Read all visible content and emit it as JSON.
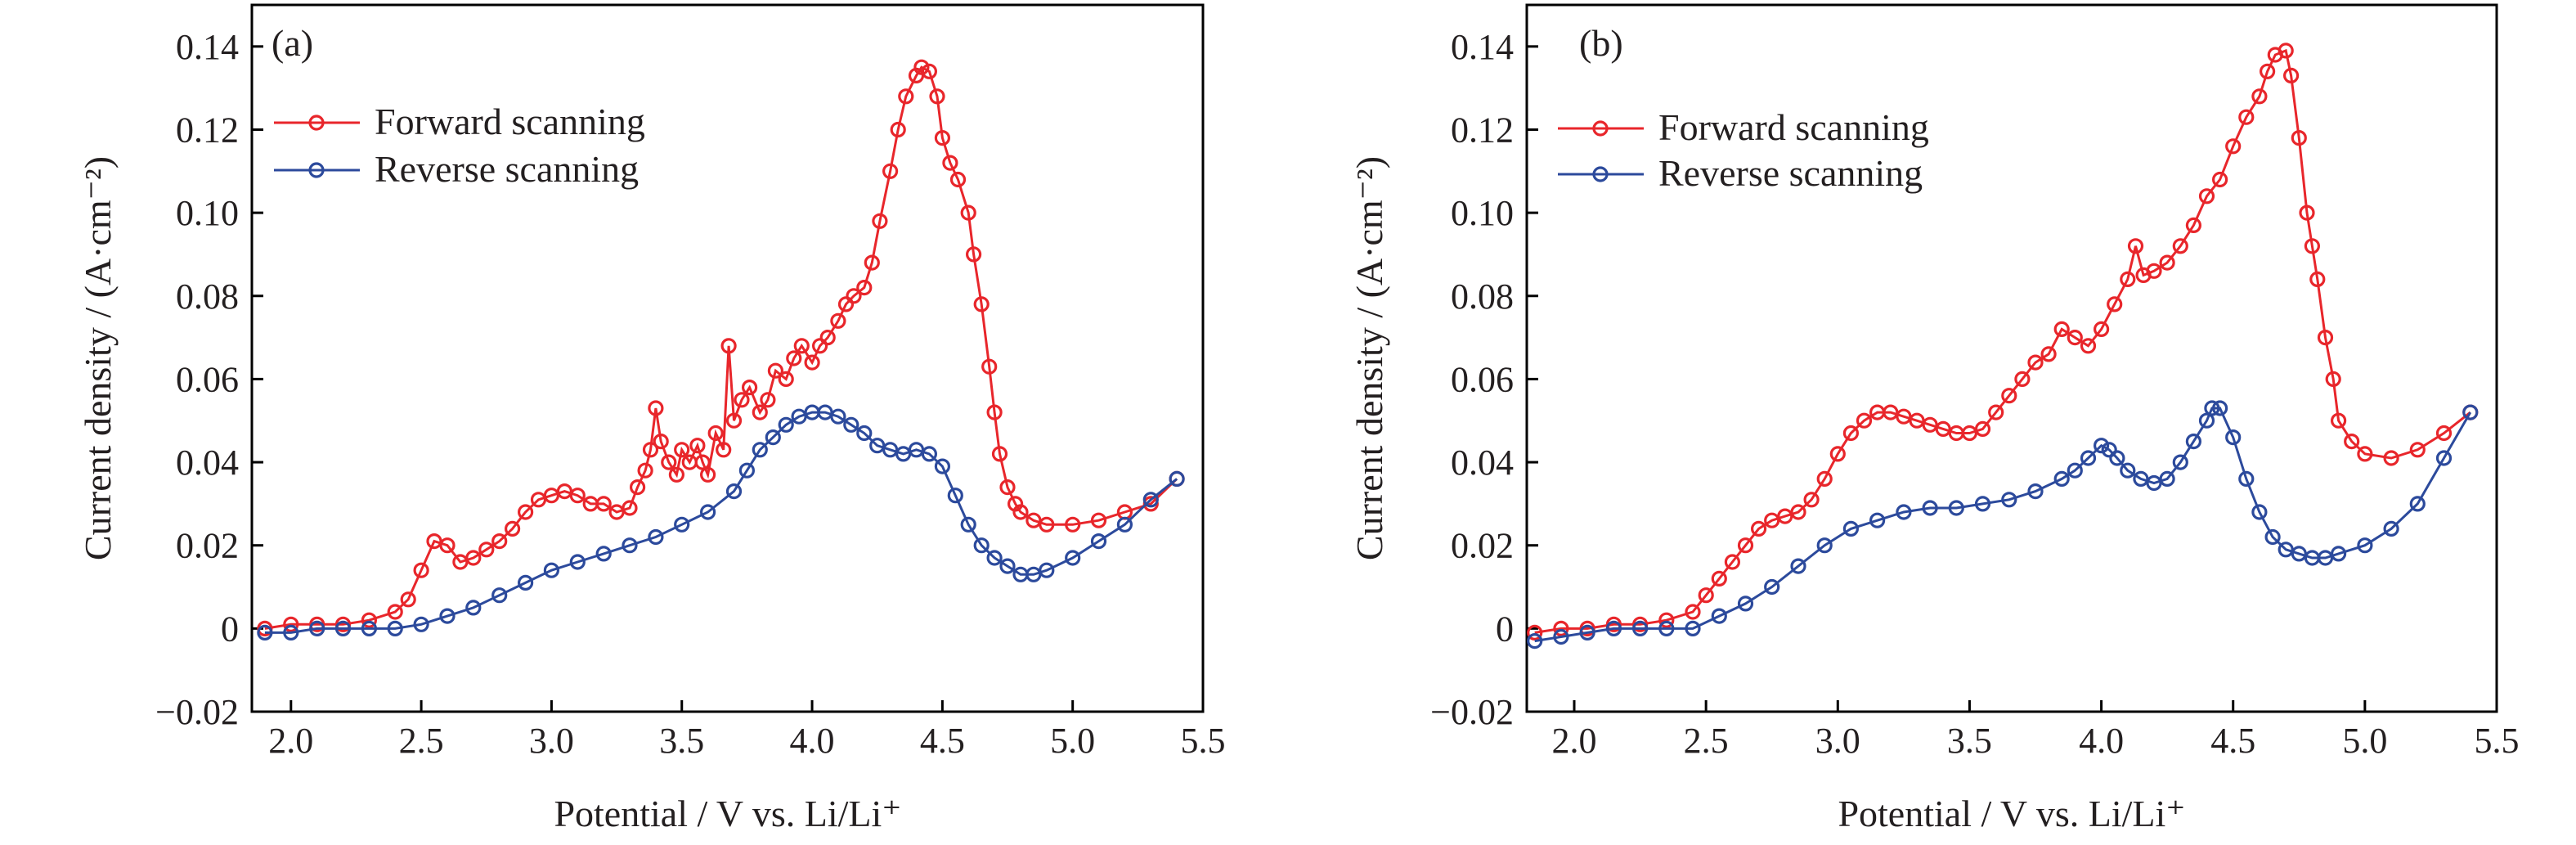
{
  "colors": {
    "forward": "#e8262b",
    "reverse": "#2c4a9c"
  },
  "shared": {
    "xlabel": "Potential / V vs. Li/Li⁺",
    "ylabel": "Current density / (A·cm⁻²)",
    "legend": [
      "Forward scanning",
      "Reverse scanning"
    ],
    "x_ticks": [
      "2.0",
      "2.5",
      "3.0",
      "3.5",
      "4.0",
      "4.5",
      "5.0",
      "5.5"
    ],
    "y_ticks": [
      "−0.02",
      "0",
      "0.02",
      "0.04",
      "0.06",
      "0.08",
      "0.10",
      "0.12",
      "0.14"
    ]
  },
  "chart_data": [
    {
      "type": "scatter",
      "panel_label": "(a)",
      "xlabel": "Potential / V vs. Li/Li⁺",
      "ylabel": "Current density / (A·cm⁻²)",
      "xlim": [
        1.85,
        5.5
      ],
      "ylim": [
        -0.02,
        0.15
      ],
      "x_tick_values": [
        2.0,
        2.5,
        3.0,
        3.5,
        4.0,
        4.5,
        5.0,
        5.5
      ],
      "y_tick_values": [
        -0.02,
        0,
        0.02,
        0.04,
        0.06,
        0.08,
        0.1,
        0.12,
        0.14
      ],
      "legend_position": "upper-left",
      "series": [
        {
          "name": "Forward scanning",
          "color": "#e8262b",
          "x": [
            1.9,
            2.0,
            2.1,
            2.2,
            2.3,
            2.4,
            2.45,
            2.5,
            2.55,
            2.6,
            2.65,
            2.7,
            2.75,
            2.8,
            2.85,
            2.9,
            2.95,
            3.0,
            3.05,
            3.1,
            3.15,
            3.2,
            3.25,
            3.3,
            3.33,
            3.36,
            3.38,
            3.4,
            3.42,
            3.45,
            3.48,
            3.5,
            3.53,
            3.56,
            3.58,
            3.6,
            3.63,
            3.66,
            3.68,
            3.7,
            3.73,
            3.76,
            3.8,
            3.83,
            3.86,
            3.9,
            3.93,
            3.96,
            4.0,
            4.03,
            4.06,
            4.1,
            4.13,
            4.16,
            4.2,
            4.23,
            4.26,
            4.3,
            4.33,
            4.36,
            4.4,
            4.42,
            4.45,
            4.48,
            4.5,
            4.53,
            4.56,
            4.6,
            4.62,
            4.65,
            4.68,
            4.7,
            4.72,
            4.75,
            4.78,
            4.8,
            4.85,
            4.9,
            5.0,
            5.1,
            5.2,
            5.3,
            5.4
          ],
          "y": [
            0.0,
            0.001,
            0.001,
            0.001,
            0.002,
            0.004,
            0.007,
            0.014,
            0.021,
            0.02,
            0.016,
            0.017,
            0.019,
            0.021,
            0.024,
            0.028,
            0.031,
            0.032,
            0.033,
            0.032,
            0.03,
            0.03,
            0.028,
            0.029,
            0.034,
            0.038,
            0.043,
            0.053,
            0.045,
            0.04,
            0.037,
            0.043,
            0.04,
            0.044,
            0.04,
            0.037,
            0.047,
            0.043,
            0.068,
            0.05,
            0.055,
            0.058,
            0.052,
            0.055,
            0.062,
            0.06,
            0.065,
            0.068,
            0.064,
            0.068,
            0.07,
            0.074,
            0.078,
            0.08,
            0.082,
            0.088,
            0.098,
            0.11,
            0.12,
            0.128,
            0.133,
            0.135,
            0.134,
            0.128,
            0.118,
            0.112,
            0.108,
            0.1,
            0.09,
            0.078,
            0.063,
            0.052,
            0.042,
            0.034,
            0.03,
            0.028,
            0.026,
            0.025,
            0.025,
            0.026,
            0.028,
            0.03,
            0.036
          ]
        },
        {
          "name": "Reverse scanning",
          "color": "#2c4a9c",
          "x": [
            1.9,
            2.0,
            2.1,
            2.2,
            2.3,
            2.4,
            2.5,
            2.6,
            2.7,
            2.8,
            2.9,
            3.0,
            3.1,
            3.2,
            3.3,
            3.4,
            3.5,
            3.6,
            3.7,
            3.75,
            3.8,
            3.85,
            3.9,
            3.95,
            4.0,
            4.05,
            4.1,
            4.15,
            4.2,
            4.25,
            4.3,
            4.35,
            4.4,
            4.45,
            4.5,
            4.55,
            4.6,
            4.65,
            4.7,
            4.75,
            4.8,
            4.85,
            4.9,
            5.0,
            5.1,
            5.2,
            5.3,
            5.4
          ],
          "y": [
            -0.001,
            -0.001,
            0.0,
            0.0,
            0.0,
            0.0,
            0.001,
            0.003,
            0.005,
            0.008,
            0.011,
            0.014,
            0.016,
            0.018,
            0.02,
            0.022,
            0.025,
            0.028,
            0.033,
            0.038,
            0.043,
            0.046,
            0.049,
            0.051,
            0.052,
            0.052,
            0.051,
            0.049,
            0.047,
            0.044,
            0.043,
            0.042,
            0.043,
            0.042,
            0.039,
            0.032,
            0.025,
            0.02,
            0.017,
            0.015,
            0.013,
            0.013,
            0.014,
            0.017,
            0.021,
            0.025,
            0.031,
            0.036
          ]
        }
      ]
    },
    {
      "type": "scatter",
      "panel_label": "(b)",
      "xlabel": "Potential / V vs. Li/Li⁺",
      "ylabel": "Current density / (A·cm⁻²)",
      "xlim": [
        1.82,
        5.5
      ],
      "ylim": [
        -0.02,
        0.15
      ],
      "x_tick_values": [
        2.0,
        2.5,
        3.0,
        3.5,
        4.0,
        4.5,
        5.0,
        5.5
      ],
      "y_tick_values": [
        -0.02,
        0,
        0.02,
        0.04,
        0.06,
        0.08,
        0.1,
        0.12,
        0.14
      ],
      "legend_position": "upper-left",
      "series": [
        {
          "name": "Forward scanning",
          "color": "#e8262b",
          "x": [
            1.85,
            1.95,
            2.05,
            2.15,
            2.25,
            2.35,
            2.45,
            2.5,
            2.55,
            2.6,
            2.65,
            2.7,
            2.75,
            2.8,
            2.85,
            2.9,
            2.95,
            3.0,
            3.05,
            3.1,
            3.15,
            3.2,
            3.25,
            3.3,
            3.35,
            3.4,
            3.45,
            3.5,
            3.55,
            3.6,
            3.65,
            3.7,
            3.75,
            3.8,
            3.85,
            3.9,
            3.95,
            4.0,
            4.05,
            4.1,
            4.13,
            4.16,
            4.2,
            4.25,
            4.3,
            4.35,
            4.4,
            4.45,
            4.5,
            4.55,
            4.6,
            4.63,
            4.66,
            4.7,
            4.72,
            4.75,
            4.78,
            4.8,
            4.82,
            4.85,
            4.88,
            4.9,
            4.95,
            5.0,
            5.1,
            5.2,
            5.3,
            5.4
          ],
          "y": [
            -0.001,
            0.0,
            0.0,
            0.001,
            0.001,
            0.002,
            0.004,
            0.008,
            0.012,
            0.016,
            0.02,
            0.024,
            0.026,
            0.027,
            0.028,
            0.031,
            0.036,
            0.042,
            0.047,
            0.05,
            0.052,
            0.052,
            0.051,
            0.05,
            0.049,
            0.048,
            0.047,
            0.047,
            0.048,
            0.052,
            0.056,
            0.06,
            0.064,
            0.066,
            0.072,
            0.07,
            0.068,
            0.072,
            0.078,
            0.084,
            0.092,
            0.085,
            0.086,
            0.088,
            0.092,
            0.097,
            0.104,
            0.108,
            0.116,
            0.123,
            0.128,
            0.134,
            0.138,
            0.139,
            0.133,
            0.118,
            0.1,
            0.092,
            0.084,
            0.07,
            0.06,
            0.05,
            0.045,
            0.042,
            0.041,
            0.043,
            0.047,
            0.052
          ]
        },
        {
          "name": "Reverse scanning",
          "color": "#2c4a9c",
          "x": [
            1.85,
            1.95,
            2.05,
            2.15,
            2.25,
            2.35,
            2.45,
            2.55,
            2.65,
            2.75,
            2.85,
            2.95,
            3.05,
            3.15,
            3.25,
            3.35,
            3.45,
            3.55,
            3.65,
            3.75,
            3.85,
            3.9,
            3.95,
            4.0,
            4.03,
            4.06,
            4.1,
            4.15,
            4.2,
            4.25,
            4.3,
            4.35,
            4.4,
            4.42,
            4.45,
            4.5,
            4.55,
            4.6,
            4.65,
            4.7,
            4.75,
            4.8,
            4.85,
            4.9,
            5.0,
            5.1,
            5.2,
            5.3,
            5.4
          ],
          "y": [
            -0.003,
            -0.002,
            -0.001,
            0.0,
            0.0,
            0.0,
            0.0,
            0.003,
            0.006,
            0.01,
            0.015,
            0.02,
            0.024,
            0.026,
            0.028,
            0.029,
            0.029,
            0.03,
            0.031,
            0.033,
            0.036,
            0.038,
            0.041,
            0.044,
            0.043,
            0.041,
            0.038,
            0.036,
            0.035,
            0.036,
            0.04,
            0.045,
            0.05,
            0.053,
            0.053,
            0.046,
            0.036,
            0.028,
            0.022,
            0.019,
            0.018,
            0.017,
            0.017,
            0.018,
            0.02,
            0.024,
            0.03,
            0.041,
            0.052
          ]
        }
      ]
    }
  ]
}
